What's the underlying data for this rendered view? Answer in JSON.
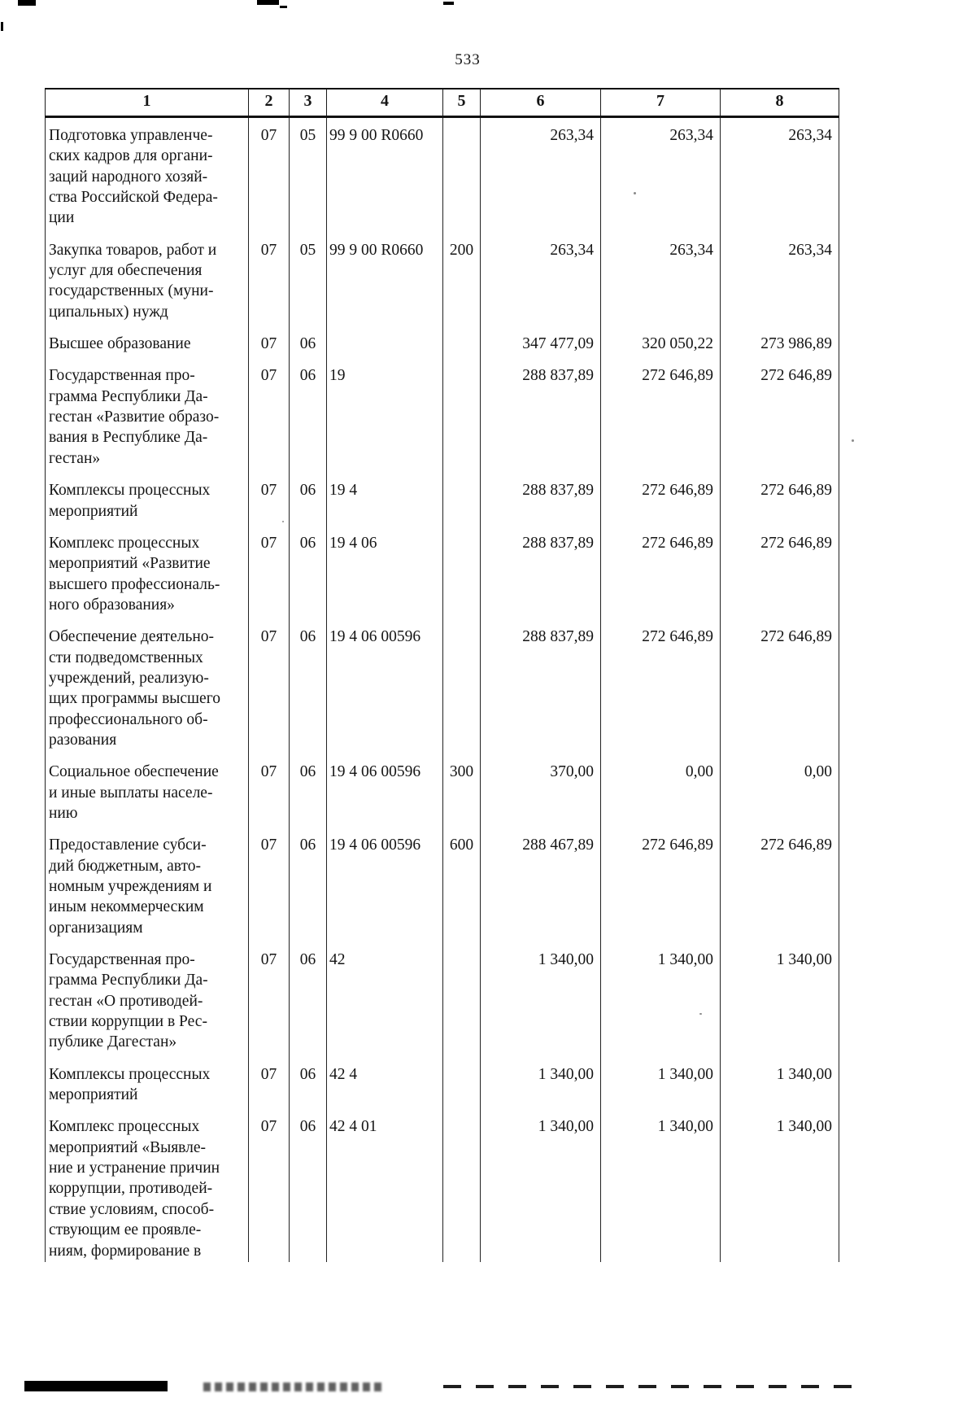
{
  "page_number": "533",
  "table": {
    "headers": [
      "1",
      "2",
      "3",
      "4",
      "5",
      "6",
      "7",
      "8"
    ],
    "rows": [
      [
        "Подготовка управленче-\nских кадров для органи-\nзаций народного хозяй-\nства Российской Федера-\nции",
        "07",
        "05",
        "99 9 00 R0660",
        "",
        "263,34",
        "263,34",
        "263,34"
      ],
      [
        "Закупка товаров, работ и\nуслуг для обеспечения\nгосударственных (муни-\nципальных) нужд",
        "07",
        "05",
        "99 9 00 R0660",
        "200",
        "263,34",
        "263,34",
        "263,34"
      ],
      [
        "Высшее образование",
        "07",
        "06",
        "",
        "",
        "347 477,09",
        "320 050,22",
        "273 986,89"
      ],
      [
        "Государственная про-\nграмма Республики Да-\nгестан «Развитие образо-\nвания в Республике Да-\nгестан»",
        "07",
        "06",
        "19",
        "",
        "288 837,89",
        "272 646,89",
        "272 646,89"
      ],
      [
        "Комплексы процессных\nмероприятий",
        "07",
        "06",
        "19 4",
        "",
        "288 837,89",
        "272 646,89",
        "272 646,89"
      ],
      [
        "Комплекс процессных\nмероприятий «Развитие\nвысшего профессиональ-\nного образования»",
        "07",
        "06",
        "19 4 06",
        "",
        "288 837,89",
        "272 646,89",
        "272 646,89"
      ],
      [
        "Обеспечение деятельно-\nсти подведомственных\nучреждений, реализую-\nщих программы высшего\nпрофессионального об-\nразования",
        "07",
        "06",
        "19 4 06 00596",
        "",
        "288 837,89",
        "272 646,89",
        "272 646,89"
      ],
      [
        "Социальное обеспечение\nи иные выплаты населе-\nнию",
        "07",
        "06",
        "19 4 06 00596",
        "300",
        "370,00",
        "0,00",
        "0,00"
      ],
      [
        "Предоставление субси-\nдий бюджетным, авто-\nномным учреждениям и\nиным некоммерческим\nорганизациям",
        "07",
        "06",
        "19 4 06 00596",
        "600",
        "288 467,89",
        "272 646,89",
        "272 646,89"
      ],
      [
        "Государственная про-\nграмма Республики Да-\nгестан «О противодей-\nствии коррупции в Рес-\nпублике Дагестан»",
        "07",
        "06",
        "42",
        "",
        "1 340,00",
        "1 340,00",
        "1 340,00"
      ],
      [
        "Комплексы процессных\nмероприятий",
        "07",
        "06",
        "42 4",
        "",
        "1 340,00",
        "1 340,00",
        "1 340,00"
      ],
      [
        "Комплекс процессных\nмероприятий «Выявле-\nние и устранение причин\nкоррупции, противодей-\nствие условиям, способ-\nствующим ее проявле-\nниям, формирование в",
        "07",
        "06",
        "42 4 01",
        "",
        "1 340,00",
        "1 340,00",
        "1 340,00"
      ]
    ]
  }
}
